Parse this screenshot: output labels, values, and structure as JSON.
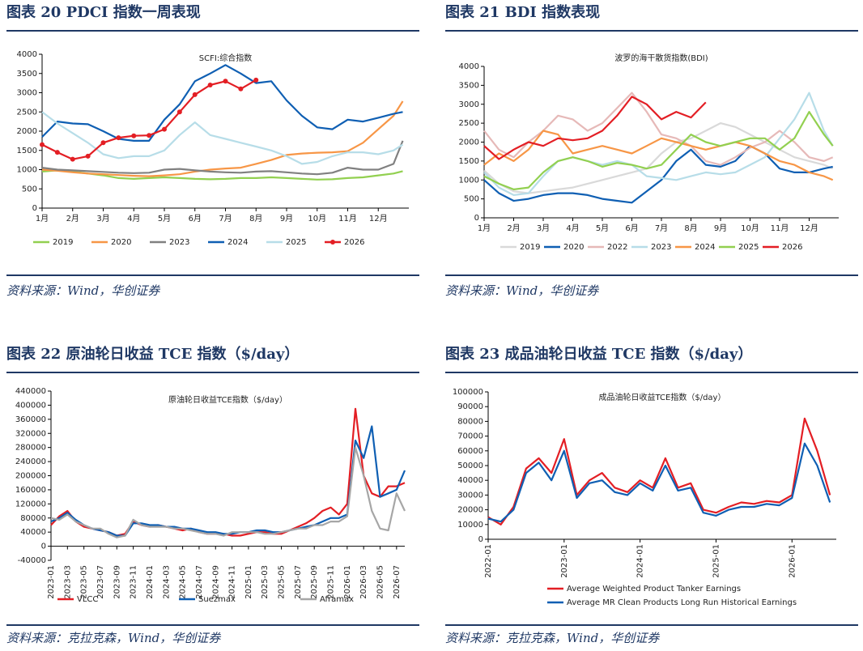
{
  "figures": [
    {
      "caption": "图表 20   PDCI 指数一周表现",
      "source": "资料来源：Wind，华创证券"
    },
    {
      "caption": "图表 21   BDI 指数表现",
      "source": "资料来源：Wind，华创证券"
    },
    {
      "caption": "图表 22   原油轮日收益 TCE 指数（$/day）",
      "source": "资料来源：克拉克森，Wind，华创证券"
    },
    {
      "caption": "图表 23   成品油轮日收益 TCE 指数（$/day）",
      "source": "资料来源：克拉克森，Wind，华创证券"
    }
  ],
  "chart_data": [
    {
      "type": "line",
      "title": "SCFI:综合指数",
      "legend": "bottom",
      "x": [
        1,
        1.5,
        2,
        2.5,
        3,
        3.5,
        4,
        4.5,
        5,
        5.5,
        6,
        6.5,
        7,
        7.5,
        8,
        8.5,
        9,
        9.5,
        10,
        10.5,
        11,
        11.5,
        12,
        12.5,
        12.8
      ],
      "xlim": [
        1,
        13
      ],
      "xticks": [
        {
          "value": 1,
          "label": "1月"
        },
        {
          "value": 2,
          "label": "2月"
        },
        {
          "value": 3,
          "label": "3月"
        },
        {
          "value": 4,
          "label": "4月"
        },
        {
          "value": 5,
          "label": "5月"
        },
        {
          "value": 6,
          "label": "6月"
        },
        {
          "value": 7,
          "label": "7月"
        },
        {
          "value": 8,
          "label": "8月"
        },
        {
          "value": 9,
          "label": "9月"
        },
        {
          "value": 10,
          "label": "10月"
        },
        {
          "value": 11,
          "label": "11月"
        },
        {
          "value": 12,
          "label": "12月"
        }
      ],
      "ylim": [
        0,
        4000
      ],
      "yticks": [
        0,
        500,
        1000,
        1500,
        2000,
        2500,
        3000,
        3500,
        4000
      ],
      "series": [
        {
          "name": "2019",
          "color": "#92d050",
          "values": [
            950,
            980,
            950,
            900,
            850,
            780,
            760,
            780,
            800,
            780,
            760,
            750,
            760,
            780,
            780,
            800,
            780,
            760,
            740,
            750,
            780,
            800,
            850,
            900,
            960
          ]
        },
        {
          "name": "2020",
          "color": "#f79646",
          "values": [
            1000,
            970,
            930,
            900,
            880,
            860,
            840,
            830,
            850,
            880,
            950,
            1000,
            1030,
            1050,
            1150,
            1250,
            1380,
            1420,
            1440,
            1450,
            1480,
            1700,
            2050,
            2400,
            2780
          ]
        },
        {
          "name": "2023",
          "color": "#808080",
          "values": [
            1050,
            1000,
            980,
            960,
            940,
            920,
            910,
            920,
            1000,
            1020,
            980,
            950,
            930,
            920,
            950,
            960,
            930,
            900,
            880,
            920,
            1050,
            1000,
            1000,
            1150,
            1750
          ]
        },
        {
          "name": "2024",
          "color": "#0f5fb3",
          "values": [
            1850,
            2250,
            2200,
            2180,
            2000,
            1800,
            1750,
            1750,
            2300,
            2700,
            3300,
            3500,
            3720,
            3500,
            3250,
            3300,
            2800,
            2400,
            2100,
            2050,
            2300,
            2250,
            2350,
            2450,
            2500
          ]
        },
        {
          "name": "2025",
          "color": "#b7dde8",
          "values": [
            2500,
            2200,
            1950,
            1700,
            1400,
            1300,
            1350,
            1350,
            1500,
            1900,
            2230,
            1900,
            1800,
            1700,
            1600,
            1500,
            1350,
            1150,
            1200,
            1350,
            1450,
            1450,
            1400,
            1500,
            1650
          ]
        },
        {
          "name": "2026",
          "color": "#e31e24",
          "markers": true,
          "values": [
            1650,
            1450,
            1270,
            1350,
            1700,
            1830,
            1880,
            1890,
            2050,
            2500,
            2950,
            3200,
            3300,
            3100,
            3330,
            null,
            null,
            null,
            null,
            null,
            null,
            null,
            null,
            null,
            null
          ]
        }
      ]
    },
    {
      "type": "line",
      "title": "波罗的海干散货指数(BDI)",
      "legend": "bottom",
      "x": [
        1,
        1.5,
        2,
        2.5,
        3,
        3.5,
        4,
        4.5,
        5,
        5.5,
        6,
        6.5,
        7,
        7.5,
        8,
        8.5,
        9,
        9.5,
        10,
        10.5,
        11,
        11.5,
        12,
        12.5,
        12.8
      ],
      "xlim": [
        1,
        13
      ],
      "xticks": [
        {
          "value": 1,
          "label": "1月"
        },
        {
          "value": 2,
          "label": "2月"
        },
        {
          "value": 3,
          "label": "3月"
        },
        {
          "value": 4,
          "label": "4月"
        },
        {
          "value": 5,
          "label": "5月"
        },
        {
          "value": 6,
          "label": "6月"
        },
        {
          "value": 7,
          "label": "7月"
        },
        {
          "value": 8,
          "label": "8月"
        },
        {
          "value": 9,
          "label": "9月"
        },
        {
          "value": 10,
          "label": "10月"
        },
        {
          "value": 11,
          "label": "11月"
        },
        {
          "value": 12,
          "label": "12月"
        }
      ],
      "ylim": [
        0,
        4000
      ],
      "yticks": [
        0,
        500,
        1000,
        1500,
        2000,
        2500,
        3000,
        3500,
        4000
      ],
      "series": [
        {
          "name": "2019",
          "color": "#d9d9d9",
          "values": [
            1250,
            900,
            700,
            650,
            700,
            750,
            800,
            900,
            1000,
            1100,
            1200,
            1300,
            1700,
            2000,
            2100,
            2300,
            2500,
            2400,
            2200,
            2000,
            1800,
            1600,
            1500,
            1400,
            1300
          ]
        },
        {
          "name": "2020",
          "color": "#0f5fb3",
          "values": [
            1000,
            650,
            450,
            500,
            600,
            650,
            650,
            600,
            500,
            450,
            400,
            700,
            1000,
            1500,
            1800,
            1400,
            1350,
            1500,
            1900,
            1700,
            1300,
            1200,
            1200,
            1300,
            1350
          ]
        },
        {
          "name": "2022",
          "color": "#e6b9b8",
          "values": [
            2300,
            1800,
            1600,
            2000,
            2300,
            2700,
            2600,
            2300,
            2500,
            2900,
            3300,
            2800,
            2200,
            2100,
            1900,
            1500,
            1400,
            1600,
            1850,
            2000,
            2300,
            2000,
            1600,
            1500,
            1600
          ]
        },
        {
          "name": "2023",
          "color": "#b7dde8",
          "values": [
            1200,
            800,
            600,
            650,
            1100,
            1500,
            1600,
            1500,
            1400,
            1500,
            1400,
            1100,
            1050,
            1000,
            1100,
            1200,
            1150,
            1200,
            1400,
            1600,
            2100,
            2600,
            3300,
            2300,
            1900
          ]
        },
        {
          "name": "2024",
          "color": "#f79646",
          "values": [
            1400,
            1700,
            1500,
            1800,
            2300,
            2200,
            1700,
            1800,
            1900,
            1800,
            1700,
            1900,
            2100,
            2000,
            1900,
            1800,
            1900,
            2000,
            1900,
            1700,
            1500,
            1400,
            1200,
            1100,
            1000
          ]
        },
        {
          "name": "2025",
          "color": "#92d050",
          "values": [
            1100,
            900,
            750,
            800,
            1200,
            1500,
            1600,
            1500,
            1350,
            1450,
            1400,
            1300,
            1400,
            1800,
            2200,
            2000,
            1900,
            2000,
            2100,
            2100,
            1800,
            2100,
            2800,
            2200,
            1900
          ]
        },
        {
          "name": "2026",
          "color": "#e31e24",
          "values": [
            1900,
            1550,
            1800,
            2000,
            1900,
            2100,
            2050,
            2100,
            2300,
            2700,
            3200,
            3000,
            2600,
            2800,
            2650,
            3050,
            null,
            null,
            null,
            null,
            null,
            null,
            null,
            null,
            null
          ]
        }
      ]
    },
    {
      "type": "line",
      "title": "原油轮日收益TCE指数（$/day）",
      "legend": "bottom",
      "x": [
        0,
        1,
        2,
        3,
        4,
        5,
        6,
        7,
        8,
        9,
        10,
        11,
        12,
        13,
        14,
        15,
        16,
        17,
        18,
        19,
        20,
        21,
        22,
        23,
        24,
        25,
        26,
        27,
        28,
        29,
        30,
        31,
        32,
        33,
        34,
        35,
        36,
        37,
        38,
        39,
        40,
        41,
        42,
        43
      ],
      "xlim": [
        0,
        43
      ],
      "xticks": [
        {
          "value": 0,
          "label": "2023-01"
        },
        {
          "value": 2,
          "label": "2023-03"
        },
        {
          "value": 4,
          "label": "2023-05"
        },
        {
          "value": 6,
          "label": "2023-07"
        },
        {
          "value": 8,
          "label": "2023-09"
        },
        {
          "value": 10,
          "label": "2023-11"
        },
        {
          "value": 12,
          "label": "2024-01"
        },
        {
          "value": 14,
          "label": "2024-03"
        },
        {
          "value": 16,
          "label": "2024-05"
        },
        {
          "value": 18,
          "label": "2024-07"
        },
        {
          "value": 20,
          "label": "2024-09"
        },
        {
          "value": 22,
          "label": "2024-11"
        },
        {
          "value": 24,
          "label": "2025-01"
        },
        {
          "value": 26,
          "label": "2025-03"
        },
        {
          "value": 28,
          "label": "2025-05"
        },
        {
          "value": 30,
          "label": "2025-07"
        },
        {
          "value": 32,
          "label": "2025-09"
        },
        {
          "value": 34,
          "label": "2025-11"
        },
        {
          "value": 36,
          "label": "2026-01"
        },
        {
          "value": 38,
          "label": "2026-03"
        },
        {
          "value": 40,
          "label": "2026-05"
        },
        {
          "value": 42,
          "label": "2026-07"
        }
      ],
      "ylim": [
        -40000,
        440000
      ],
      "yticks": [
        -40000,
        0,
        40000,
        80000,
        120000,
        160000,
        200000,
        240000,
        280000,
        320000,
        360000,
        400000,
        440000
      ],
      "series": [
        {
          "name": "VLCC",
          "color": "#e31e24",
          "values": [
            60000,
            85000,
            100000,
            70000,
            55000,
            50000,
            45000,
            40000,
            30000,
            35000,
            70000,
            60000,
            55000,
            60000,
            55000,
            50000,
            45000,
            50000,
            40000,
            35000,
            35000,
            35000,
            30000,
            30000,
            35000,
            40000,
            40000,
            35000,
            35000,
            45000,
            55000,
            65000,
            80000,
            100000,
            110000,
            90000,
            120000,
            390000,
            200000,
            150000,
            140000,
            170000,
            170000,
            180000
          ]
        },
        {
          "name": "Suezmax",
          "color": "#0f5fb3",
          "values": [
            70000,
            80000,
            95000,
            75000,
            60000,
            50000,
            45000,
            40000,
            30000,
            30000,
            65000,
            65000,
            60000,
            60000,
            55000,
            55000,
            50000,
            50000,
            45000,
            40000,
            40000,
            35000,
            35000,
            40000,
            40000,
            45000,
            45000,
            40000,
            40000,
            45000,
            50000,
            55000,
            60000,
            70000,
            80000,
            80000,
            90000,
            300000,
            250000,
            340000,
            140000,
            150000,
            160000,
            215000
          ]
        },
        {
          "name": "Aframax",
          "color": "#a6a6a6",
          "values": [
            80000,
            75000,
            90000,
            70000,
            60000,
            50000,
            50000,
            35000,
            25000,
            30000,
            75000,
            60000,
            55000,
            55000,
            55000,
            50000,
            50000,
            45000,
            40000,
            35000,
            35000,
            30000,
            40000,
            40000,
            40000,
            40000,
            35000,
            35000,
            40000,
            45000,
            50000,
            50000,
            60000,
            60000,
            70000,
            70000,
            85000,
            280000,
            200000,
            100000,
            50000,
            45000,
            150000,
            100000
          ]
        }
      ]
    },
    {
      "type": "line",
      "title": "成品油轮日收益TCE指数（$/day）",
      "legend": "bottom",
      "x": [
        0,
        2,
        4,
        6,
        8,
        10,
        12,
        14,
        16,
        18,
        20,
        22,
        24,
        26,
        28,
        30,
        32,
        34,
        36,
        38,
        40,
        42,
        44,
        46,
        48,
        50,
        52,
        54
      ],
      "xlim": [
        0,
        55
      ],
      "xticks": [
        {
          "value": 0,
          "label": "2022-01"
        },
        {
          "value": 12,
          "label": "2023-01"
        },
        {
          "value": 24,
          "label": "2024-01"
        },
        {
          "value": 36,
          "label": "2025-01"
        },
        {
          "value": 48,
          "label": "2026-01"
        }
      ],
      "ylim": [
        0,
        100000
      ],
      "yticks": [
        0,
        10000,
        20000,
        30000,
        40000,
        50000,
        60000,
        70000,
        80000,
        90000,
        100000
      ],
      "series": [
        {
          "name": "Average Weighted Product Tanker Earnings",
          "color": "#e31e24",
          "values": [
            15000,
            10000,
            22000,
            48000,
            55000,
            45000,
            68000,
            30000,
            40000,
            45000,
            35000,
            32000,
            40000,
            35000,
            55000,
            35000,
            38000,
            20000,
            18000,
            22000,
            25000,
            24000,
            26000,
            25000,
            30000,
            82000,
            60000,
            30000
          ]
        },
        {
          "name": "Average MR Clean Products Long Run Historical Earnings",
          "color": "#0f5fb3",
          "values": [
            14000,
            12000,
            20000,
            45000,
            52000,
            40000,
            60000,
            28000,
            38000,
            40000,
            32000,
            30000,
            38000,
            33000,
            50000,
            33000,
            35000,
            18000,
            16000,
            20000,
            22000,
            22000,
            24000,
            23000,
            28000,
            65000,
            50000,
            25000
          ]
        }
      ]
    }
  ]
}
